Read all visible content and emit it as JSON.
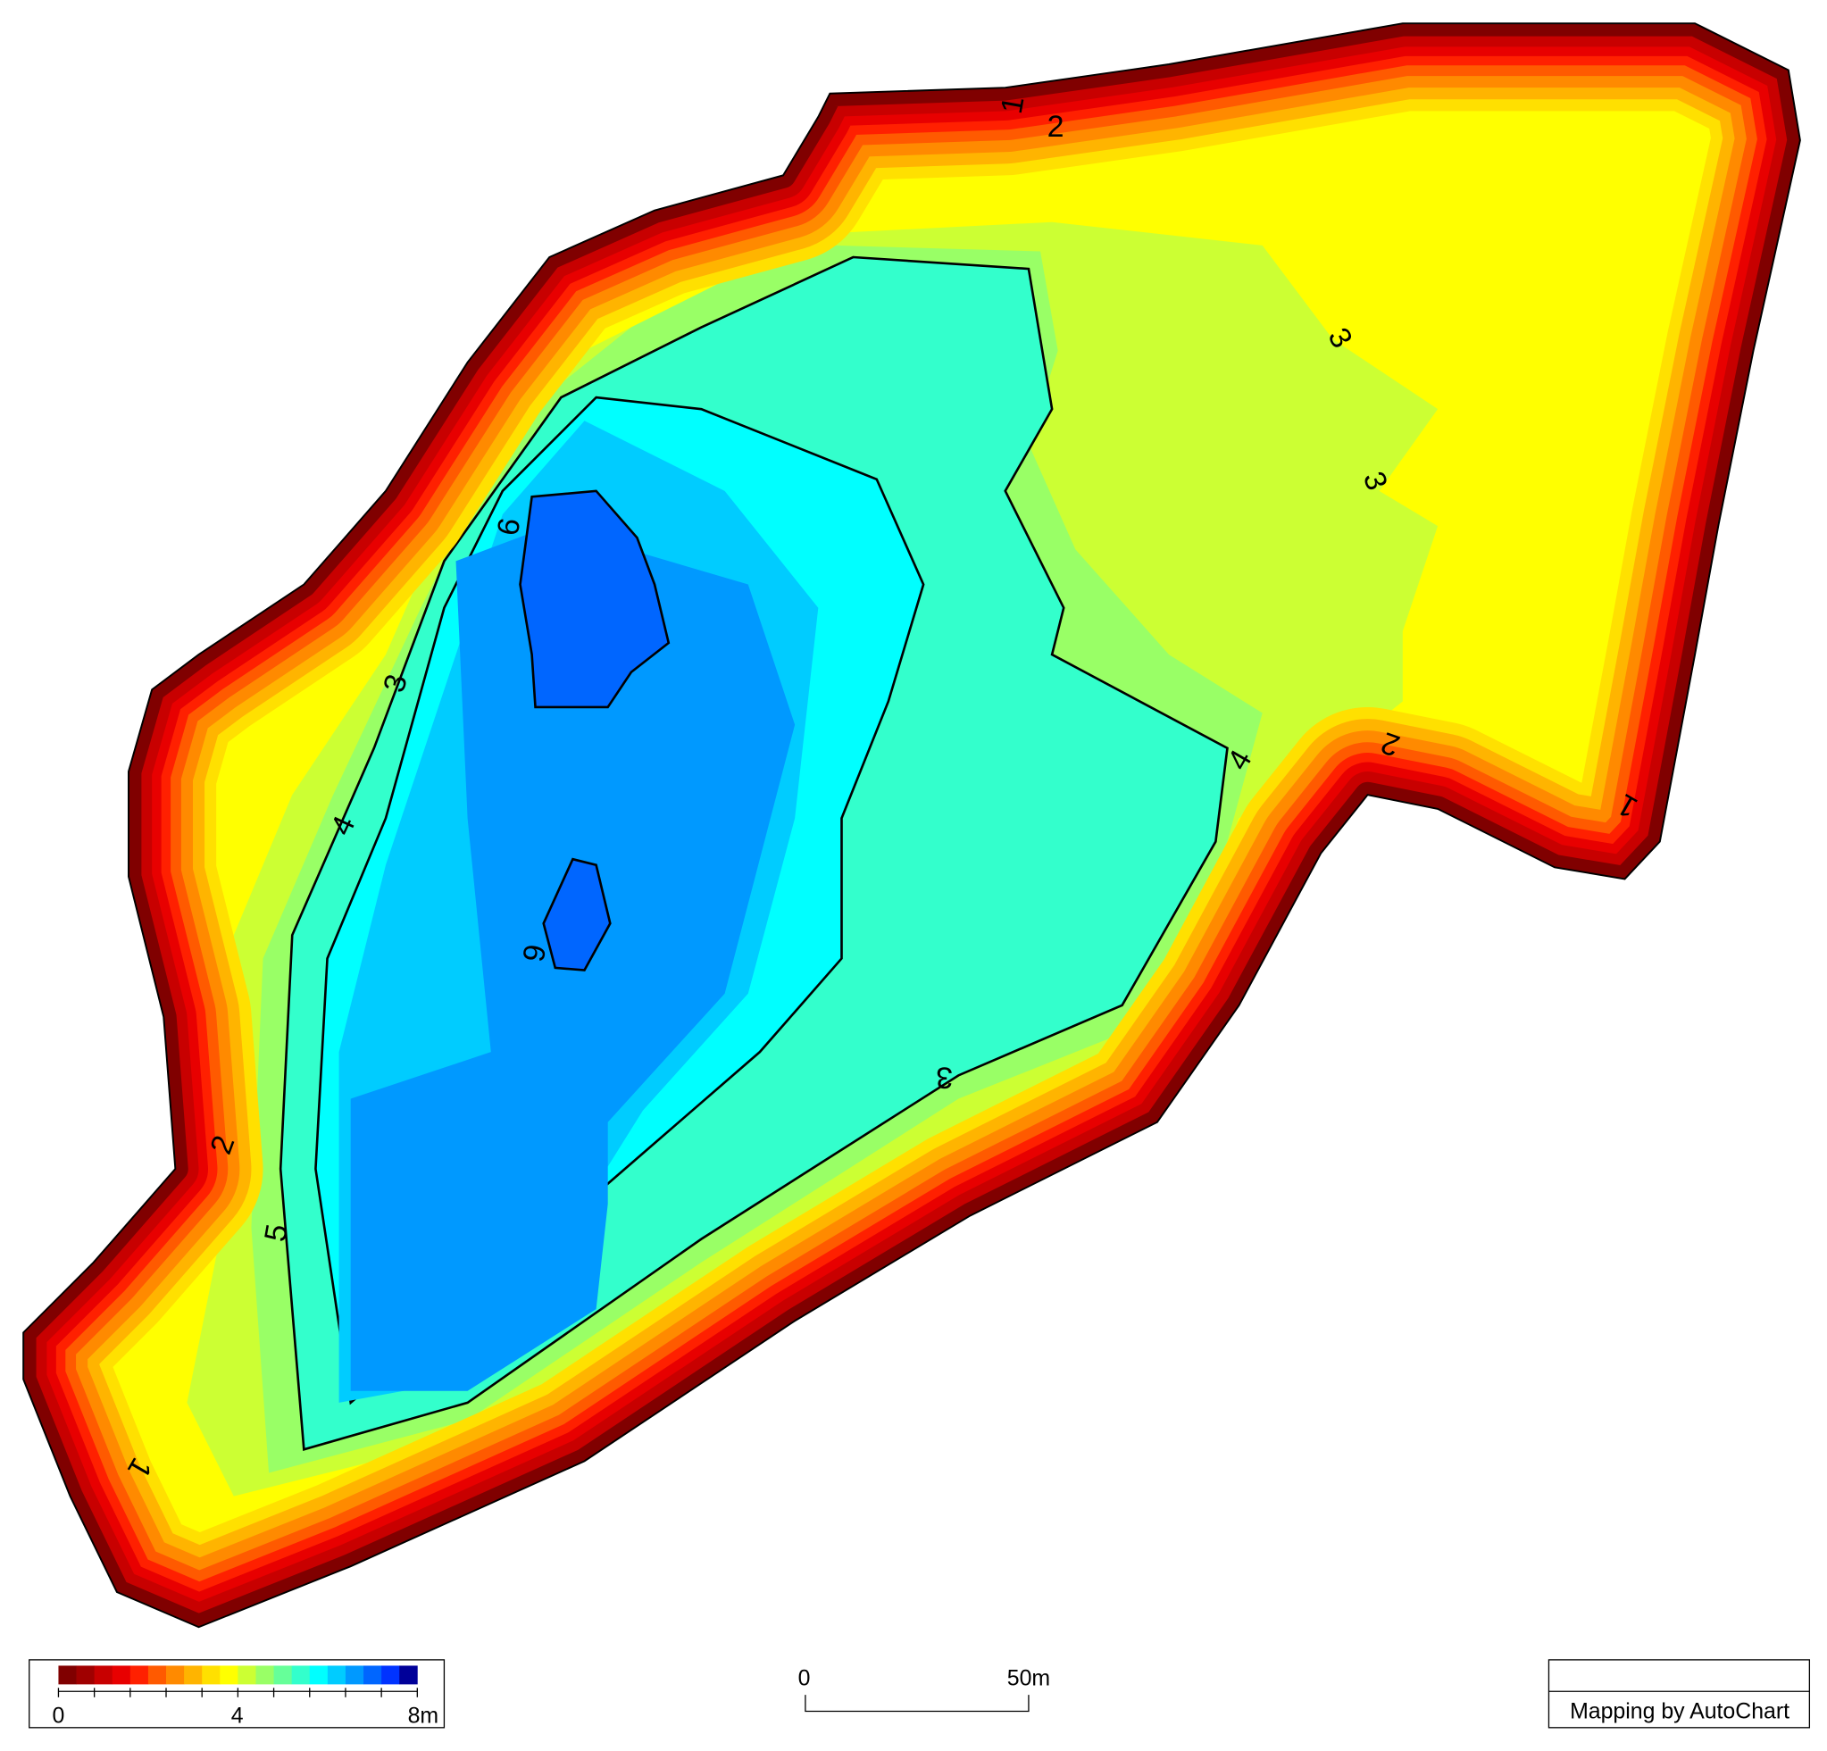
{
  "map": {
    "contour_labels": [
      "1",
      "2",
      "3",
      "3",
      "4",
      "2",
      "1",
      "3",
      "6",
      "6",
      "3",
      "4",
      "2",
      "5",
      "1"
    ],
    "legend": {
      "colors": [
        "#800000",
        "#a00000",
        "#c80000",
        "#e80000",
        "#ff2000",
        "#ff5a00",
        "#ff8a00",
        "#ffb400",
        "#ffe000",
        "#ffff00",
        "#ccff33",
        "#99ff66",
        "#66ff99",
        "#33ffcc",
        "#00ffff",
        "#00ccff",
        "#0099ff",
        "#0066ff",
        "#0033ff",
        "#000099"
      ],
      "labels": [
        "0",
        "4",
        "8m"
      ]
    },
    "scale_bar": {
      "labels": [
        "0",
        "50m"
      ]
    },
    "credit": "Mapping by AutoChart"
  }
}
